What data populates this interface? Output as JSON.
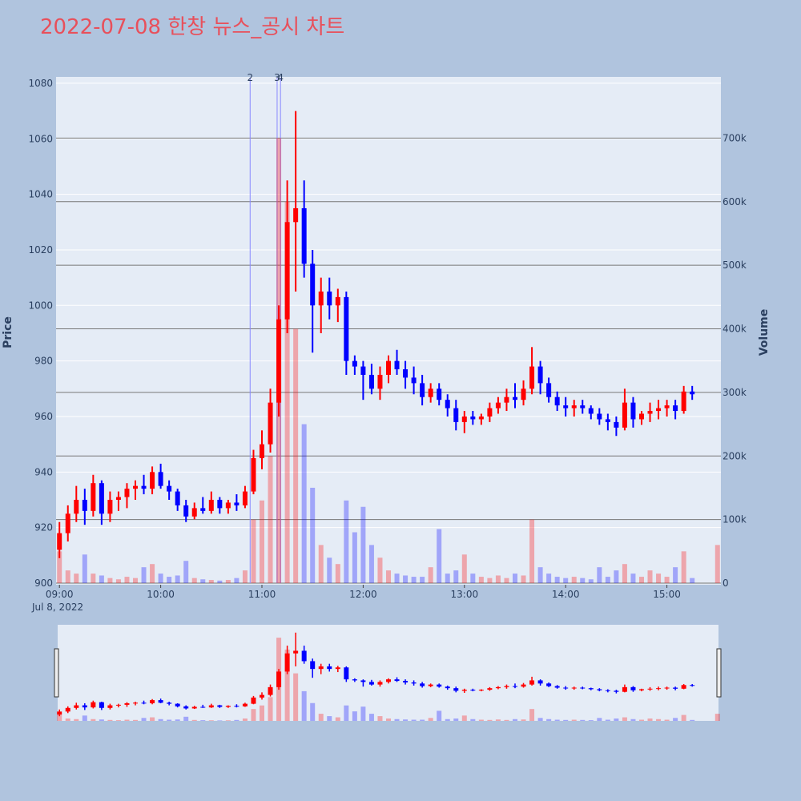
{
  "chart_data": {
    "type": "candlestick",
    "title": "2022-07-08 한창 뉴스_공시 차트",
    "ylabel": "Price",
    "y2label": "Volume",
    "x_date_label": "Jul 8, 2022",
    "increasing_color": "#ff0000",
    "decreasing_color": "#0000ff",
    "grid": true,
    "xlim": [
      "2022-07-08 08:58",
      "2022-07-08 15:32"
    ],
    "xticks": [
      {
        "value": "2022-07-08 09:00",
        "label": "09:00"
      },
      {
        "value": "2022-07-08 10:00",
        "label": "10:00"
      },
      {
        "value": "2022-07-08 11:00",
        "label": "11:00"
      },
      {
        "value": "2022-07-08 12:00",
        "label": "12:00"
      },
      {
        "value": "2022-07-08 13:00",
        "label": "13:00"
      },
      {
        "value": "2022-07-08 14:00",
        "label": "14:00"
      },
      {
        "value": "2022-07-08 15:00",
        "label": "15:00"
      }
    ],
    "ylim": [
      900,
      1082
    ],
    "yticks": [
      900,
      920,
      940,
      960,
      980,
      1000,
      1020,
      1040,
      1060,
      1080
    ],
    "y2lim": [
      0,
      795000
    ],
    "y2ticks": [
      0,
      {
        "value": 100000,
        "label": "100k"
      },
      {
        "value": 200000,
        "label": "200k"
      },
      {
        "value": 300000,
        "label": "300k"
      },
      {
        "value": 400000,
        "label": "400k"
      },
      {
        "value": 500000,
        "label": "500k"
      },
      {
        "value": 600000,
        "label": "600k"
      },
      {
        "value": 700000,
        "label": "700k"
      }
    ],
    "news": [
      {
        "x": "2022-07-08 10:53",
        "label": "2"
      },
      {
        "x": "2022-07-08 11:09",
        "label": "3"
      },
      {
        "x": "2022-07-08 11:11",
        "label": "4"
      }
    ],
    "x": [
      "2022-07-08 09:00",
      "2022-07-08 09:05",
      "2022-07-08 09:10",
      "2022-07-08 09:15",
      "2022-07-08 09:20",
      "2022-07-08 09:25",
      "2022-07-08 09:30",
      "2022-07-08 09:35",
      "2022-07-08 09:40",
      "2022-07-08 09:45",
      "2022-07-08 09:50",
      "2022-07-08 09:55",
      "2022-07-08 10:00",
      "2022-07-08 10:05",
      "2022-07-08 10:10",
      "2022-07-08 10:15",
      "2022-07-08 10:20",
      "2022-07-08 10:25",
      "2022-07-08 10:30",
      "2022-07-08 10:35",
      "2022-07-08 10:40",
      "2022-07-08 10:45",
      "2022-07-08 10:50",
      "2022-07-08 10:55",
      "2022-07-08 11:00",
      "2022-07-08 11:05",
      "2022-07-08 11:10",
      "2022-07-08 11:15",
      "2022-07-08 11:20",
      "2022-07-08 11:25",
      "2022-07-08 11:30",
      "2022-07-08 11:35",
      "2022-07-08 11:40",
      "2022-07-08 11:45",
      "2022-07-08 11:50",
      "2022-07-08 11:55",
      "2022-07-08 12:00",
      "2022-07-08 12:05",
      "2022-07-08 12:10",
      "2022-07-08 12:15",
      "2022-07-08 12:20",
      "2022-07-08 12:25",
      "2022-07-08 12:30",
      "2022-07-08 12:35",
      "2022-07-08 12:40",
      "2022-07-08 12:45",
      "2022-07-08 12:50",
      "2022-07-08 12:55",
      "2022-07-08 13:00",
      "2022-07-08 13:05",
      "2022-07-08 13:10",
      "2022-07-08 13:15",
      "2022-07-08 13:20",
      "2022-07-08 13:25",
      "2022-07-08 13:30",
      "2022-07-08 13:35",
      "2022-07-08 13:40",
      "2022-07-08 13:45",
      "2022-07-08 13:50",
      "2022-07-08 13:55",
      "2022-07-08 14:00",
      "2022-07-08 14:05",
      "2022-07-08 14:10",
      "2022-07-08 14:15",
      "2022-07-08 14:20",
      "2022-07-08 14:25",
      "2022-07-08 14:30",
      "2022-07-08 14:35",
      "2022-07-08 14:40",
      "2022-07-08 14:45",
      "2022-07-08 14:50",
      "2022-07-08 14:55",
      "2022-07-08 15:00",
      "2022-07-08 15:05",
      "2022-07-08 15:10",
      "2022-07-08 15:15",
      "2022-07-08 15:30"
    ],
    "open": [
      912,
      918,
      925,
      930,
      926,
      936,
      925,
      930,
      931,
      934,
      935,
      934,
      940,
      935,
      933,
      928,
      924,
      927,
      926,
      930,
      927,
      929,
      928,
      933,
      945,
      950,
      965,
      995,
      1030,
      1035,
      1015,
      1000,
      1005,
      1000,
      1003,
      980,
      978,
      975,
      970,
      975,
      980,
      977,
      974,
      972,
      967,
      970,
      966,
      963,
      958,
      960,
      959,
      960,
      963,
      965,
      967,
      966,
      970,
      978,
      972,
      967,
      964,
      963,
      964,
      963,
      961,
      959,
      958,
      956,
      965,
      959,
      961,
      962,
      963,
      964,
      962,
      969,
      null
    ],
    "high": [
      922,
      928,
      935,
      934,
      939,
      937,
      933,
      933,
      936,
      937,
      939,
      942,
      943,
      937,
      934,
      930,
      929,
      931,
      933,
      931,
      930,
      932,
      935,
      948,
      955,
      970,
      1000,
      1045,
      1070,
      1045,
      1020,
      1010,
      1010,
      1006,
      1005,
      982,
      980,
      979,
      978,
      982,
      984,
      980,
      978,
      975,
      972,
      972,
      968,
      966,
      962,
      962,
      961,
      965,
      967,
      970,
      972,
      973,
      985,
      980,
      974,
      969,
      967,
      966,
      966,
      964,
      963,
      961,
      960,
      970,
      967,
      962,
      965,
      966,
      966,
      966,
      971,
      971,
      null
    ],
    "low": [
      909,
      915,
      922,
      921,
      924,
      921,
      922,
      926,
      927,
      930,
      932,
      932,
      934,
      930,
      926,
      922,
      923,
      925,
      925,
      925,
      925,
      926,
      927,
      932,
      941,
      947,
      960,
      990,
      1005,
      1010,
      983,
      990,
      995,
      994,
      975,
      975,
      966,
      968,
      966,
      972,
      975,
      970,
      968,
      964,
      965,
      964,
      960,
      955,
      954,
      957,
      957,
      958,
      961,
      962,
      963,
      964,
      968,
      968,
      965,
      962,
      960,
      960,
      961,
      959,
      957,
      955,
      953,
      955,
      956,
      957,
      958,
      959,
      960,
      959,
      961,
      966,
      null
    ],
    "close": [
      918,
      925,
      930,
      926,
      936,
      925,
      930,
      931,
      934,
      935,
      934,
      940,
      935,
      933,
      928,
      924,
      927,
      926,
      930,
      927,
      929,
      928,
      933,
      945,
      950,
      965,
      995,
      1030,
      1035,
      1015,
      1000,
      1005,
      1000,
      1003,
      980,
      978,
      975,
      970,
      975,
      980,
      977,
      974,
      972,
      967,
      970,
      966,
      963,
      958,
      960,
      959,
      960,
      963,
      965,
      967,
      966,
      970,
      978,
      972,
      967,
      964,
      963,
      964,
      963,
      961,
      959,
      958,
      956,
      965,
      959,
      961,
      962,
      963,
      964,
      962,
      969,
      968,
      null
    ],
    "volume": [
      50000,
      20000,
      15000,
      45000,
      15000,
      12000,
      8000,
      6000,
      10000,
      8000,
      25000,
      30000,
      15000,
      10000,
      12000,
      35000,
      8000,
      6000,
      5000,
      4000,
      5000,
      8000,
      20000,
      100000,
      130000,
      200000,
      700000,
      600000,
      400000,
      250000,
      150000,
      60000,
      40000,
      30000,
      130000,
      80000,
      120000,
      60000,
      40000,
      20000,
      15000,
      12000,
      10000,
      10000,
      25000,
      85000,
      15000,
      20000,
      45000,
      15000,
      10000,
      8000,
      12000,
      8000,
      15000,
      12000,
      100000,
      25000,
      15000,
      10000,
      8000,
      10000,
      8000,
      6000,
      25000,
      10000,
      20000,
      30000,
      15000,
      10000,
      20000,
      15000,
      10000,
      25000,
      50000,
      8000,
      60000
    ]
  }
}
